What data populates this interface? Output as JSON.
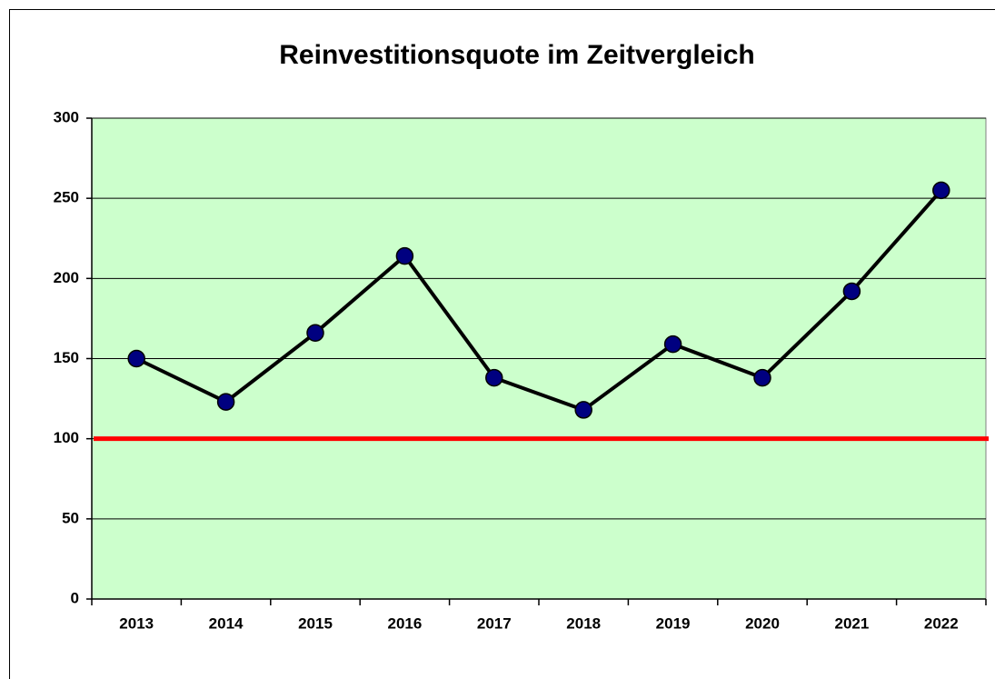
{
  "chart_data": {
    "type": "line",
    "title": "Reinvestitionsquote im Zeitvergleich",
    "categories": [
      "2013",
      "2014",
      "2015",
      "2016",
      "2017",
      "2018",
      "2019",
      "2020",
      "2021",
      "2022"
    ],
    "values": [
      150,
      123,
      166,
      214,
      138,
      118,
      159,
      138,
      192,
      255
    ],
    "color": "#000000",
    "marker_color": "#000080",
    "reference_line": {
      "value": 100,
      "color": "#ff0000"
    },
    "ylim": [
      0,
      300
    ],
    "yticks": [
      0,
      50,
      100,
      150,
      200,
      250,
      300
    ],
    "grid": true,
    "plot_background": "#ccffcc"
  }
}
